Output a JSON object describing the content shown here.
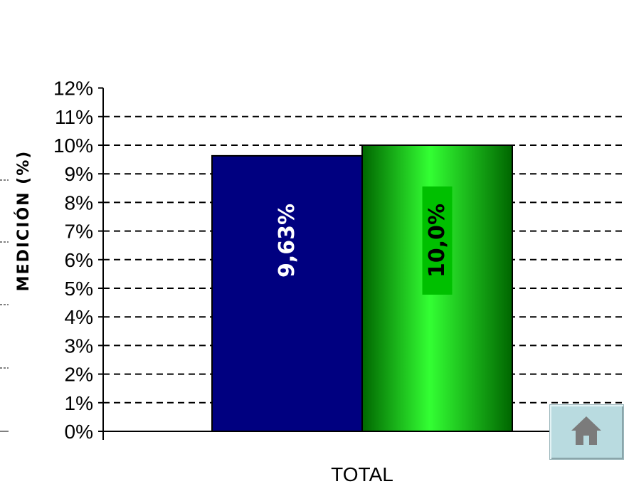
{
  "chart_data": {
    "type": "bar",
    "title": "",
    "xlabel": "",
    "ylabel": "MEDICIÓN (%)",
    "categories": [
      "TOTAL"
    ],
    "series": [
      {
        "values": [
          9.63
        ],
        "label": "9,63%",
        "color": "#000080"
      },
      {
        "values": [
          10.0
        ],
        "label": "10,0%",
        "color": "#00cc00"
      }
    ],
    "ylim": [
      0,
      12
    ],
    "yticks": [
      "0%",
      "1%",
      "2%",
      "3%",
      "4%",
      "5%",
      "6%",
      "7%",
      "8%",
      "9%",
      "10%",
      "11%",
      "12%"
    ],
    "grid": "dashed horizontal"
  },
  "nav": {
    "home_icon": "home-icon"
  }
}
